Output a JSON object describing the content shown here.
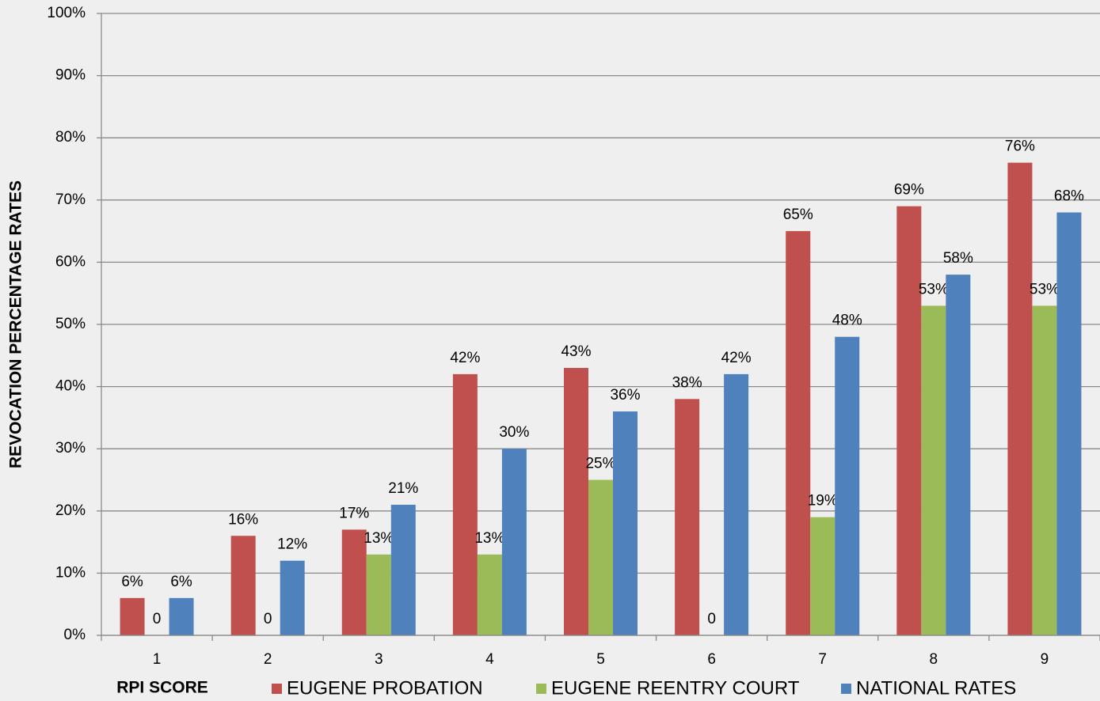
{
  "chart_data": {
    "type": "bar",
    "y_axis_label": "REVOCATION PERCENTAGE RATES",
    "x_axis_label": "RPI SCORE",
    "categories": [
      "1",
      "2",
      "3",
      "4",
      "5",
      "6",
      "7",
      "8",
      "9"
    ],
    "series": [
      {
        "name": "EUGENE PROBATION",
        "color": "#c0504d",
        "values": [
          6,
          16,
          17,
          42,
          43,
          38,
          65,
          69,
          76
        ],
        "value_labels": [
          "6%",
          "16%",
          "17%",
          "42%",
          "43%",
          "38%",
          "65%",
          "69%",
          "76%"
        ]
      },
      {
        "name": "EUGENE REENTRY COURT",
        "color": "#9bbb59",
        "values": [
          0,
          0,
          13,
          13,
          25,
          0,
          19,
          53,
          53
        ],
        "value_labels": [
          "0",
          "0",
          "13%",
          "13%",
          "25%",
          "0",
          "19%",
          "53%",
          "53%"
        ]
      },
      {
        "name": "NATIONAL RATES",
        "color": "#4f81bd",
        "values": [
          6,
          12,
          21,
          30,
          36,
          42,
          48,
          58,
          68
        ],
        "value_labels": [
          "6%",
          "12%",
          "21%",
          "30%",
          "36%",
          "42%",
          "48%",
          "58%",
          "68%"
        ]
      }
    ],
    "ylim": [
      0,
      100
    ],
    "yticks": [
      {
        "value": 0,
        "label": "0%"
      },
      {
        "value": 10,
        "label": "10%"
      },
      {
        "value": 20,
        "label": "20%"
      },
      {
        "value": 30,
        "label": "30%"
      },
      {
        "value": 40,
        "label": "40%"
      },
      {
        "value": 50,
        "label": "50%"
      },
      {
        "value": 60,
        "label": "60%"
      },
      {
        "value": 70,
        "label": "70%"
      },
      {
        "value": 80,
        "label": "80%"
      },
      {
        "value": 90,
        "label": "90%"
      },
      {
        "value": 100,
        "label": "100%"
      }
    ],
    "grid": true,
    "legend": "bottom"
  }
}
